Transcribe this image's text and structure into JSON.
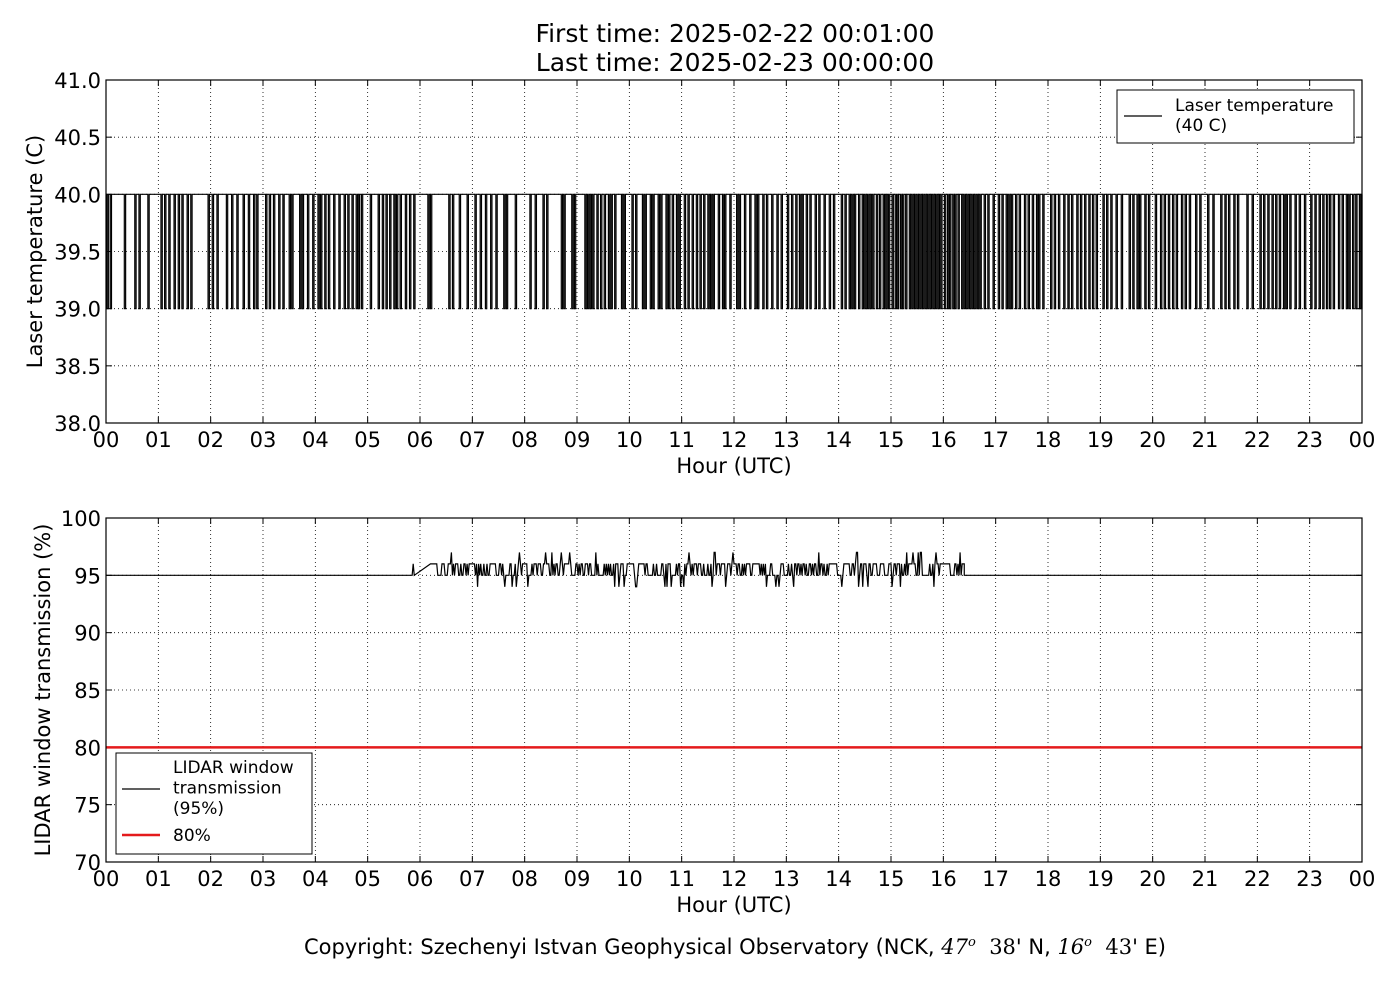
{
  "header": {
    "first_time": "First time: 2025-02-22 00:01:00",
    "last_time": "Last time: 2025-02-23 00:00:00"
  },
  "footer": {
    "prefix": "Copyright: Szechenyi Istvan Geophysical Observatory (NCK, ",
    "lat_deg": "47",
    "deg_sign": "o",
    "lat_min": "38",
    "lat_suffix": "' N, ",
    "lon_deg": "16",
    "lon_min": "43",
    "lon_suffix": "' E)"
  },
  "chart_data": [
    {
      "type": "line",
      "xlabel": "Hour (UTC)",
      "ylabel": "Laser temperature (C)",
      "x_ticks": [
        "00",
        "01",
        "02",
        "03",
        "04",
        "05",
        "06",
        "07",
        "08",
        "09",
        "10",
        "11",
        "12",
        "13",
        "14",
        "15",
        "16",
        "17",
        "18",
        "19",
        "20",
        "21",
        "22",
        "23",
        "00"
      ],
      "xlim": [
        0,
        24
      ],
      "ylim": [
        38.0,
        41.0
      ],
      "y_ticks": [
        "38.0",
        "38.5",
        "39.0",
        "39.5",
        "40.0",
        "40.5",
        "41.0"
      ],
      "grid": true,
      "legend_position": "top-right",
      "series": [
        {
          "name": "Laser temperature\n(40 C)",
          "color": "#000000",
          "style": "step",
          "levels": [
            39.0,
            40.0
          ],
          "baseline": 40.0,
          "dips_to_39_at_hours": [
            0.02,
            0.08,
            0.35,
            0.55,
            0.63,
            0.8,
            1.05,
            1.12,
            1.2,
            1.3,
            1.38,
            1.45,
            1.55,
            1.62,
            1.95,
            2.03,
            2.12,
            2.3,
            2.4,
            2.5,
            2.62,
            2.72,
            2.82,
            2.88,
            3.05,
            3.12,
            3.2,
            3.3,
            3.38,
            3.5,
            3.55,
            3.7,
            3.75,
            3.85,
            3.95,
            4.05,
            4.1,
            4.18,
            4.25,
            4.35,
            4.45,
            4.55,
            4.62,
            4.7,
            4.78,
            4.82,
            4.88,
            5.05,
            5.2,
            5.28,
            5.35,
            5.42,
            5.5,
            5.55,
            5.62,
            5.72,
            5.8,
            5.88,
            6.15,
            6.2,
            6.55,
            6.62,
            6.75,
            6.9,
            7.05,
            7.15,
            7.25,
            7.35,
            7.45,
            7.6,
            7.65,
            7.82,
            8.1,
            8.2,
            8.35,
            8.42,
            8.7,
            8.75,
            8.9,
            8.95,
            9.15,
            9.2,
            9.25,
            9.3,
            9.38,
            9.45,
            9.52,
            9.6,
            9.65,
            9.72,
            9.85,
            9.9,
            10.05,
            10.12,
            10.25,
            10.3,
            10.4,
            10.45,
            10.55,
            10.6,
            10.7,
            10.75,
            10.82,
            10.9,
            10.95,
            11.05,
            11.12,
            11.2,
            11.28,
            11.35,
            11.42,
            11.5,
            11.55,
            11.6,
            11.7,
            11.78,
            11.82,
            11.92,
            12.05,
            12.1,
            12.2,
            12.3,
            12.4,
            12.45,
            12.55,
            12.62,
            12.72,
            12.82,
            12.9,
            13.02,
            13.1,
            13.18,
            13.25,
            13.3,
            13.38,
            13.45,
            13.55,
            13.62,
            13.72,
            13.82,
            13.9,
            14.05,
            14.12,
            14.2,
            14.25,
            14.3,
            14.38,
            14.45,
            14.5,
            14.55,
            14.6,
            14.65,
            14.72,
            14.78,
            14.85,
            14.9,
            14.95,
            15.02,
            15.08,
            15.12,
            15.18,
            15.22,
            15.28,
            15.35,
            15.4,
            15.45,
            15.5,
            15.55,
            15.6,
            15.65,
            15.7,
            15.75,
            15.8,
            15.85,
            15.9,
            15.95,
            16.02,
            16.08,
            16.12,
            16.18,
            16.22,
            16.28,
            16.35,
            16.4,
            16.45,
            16.5,
            16.55,
            16.6,
            16.65,
            16.7,
            16.78,
            16.85,
            16.95,
            17.05,
            17.12,
            17.2,
            17.25,
            17.3,
            17.38,
            17.45,
            17.55,
            17.62,
            17.7,
            17.78,
            17.82,
            17.9,
            18.05,
            18.12,
            18.2,
            18.3,
            18.38,
            18.45,
            18.55,
            18.62,
            18.7,
            18.78,
            18.85,
            18.92,
            19.05,
            19.12,
            19.2,
            19.3,
            19.4,
            19.55,
            19.62,
            19.7,
            19.75,
            19.85,
            19.92,
            20.05,
            20.15,
            20.22,
            20.3,
            20.38,
            20.45,
            20.55,
            20.62,
            20.7,
            20.82,
            20.9,
            21.05,
            21.15,
            21.3,
            21.38,
            21.45,
            21.55,
            21.62,
            21.8,
            21.9,
            22.05,
            22.12,
            22.2,
            22.28,
            22.35,
            22.42,
            22.5,
            22.55,
            22.62,
            22.72,
            22.8,
            22.9,
            23.02,
            23.1,
            23.18,
            23.25,
            23.32,
            23.38,
            23.45,
            23.55,
            23.62,
            23.7,
            23.75,
            23.82,
            23.88,
            23.95,
            23.99
          ]
        }
      ]
    },
    {
      "type": "line",
      "xlabel": "Hour (UTC)",
      "ylabel": "LIDAR window transmission (%)",
      "x_ticks": [
        "00",
        "01",
        "02",
        "03",
        "04",
        "05",
        "06",
        "07",
        "08",
        "09",
        "10",
        "11",
        "12",
        "13",
        "14",
        "15",
        "16",
        "17",
        "18",
        "19",
        "20",
        "21",
        "22",
        "23",
        "00"
      ],
      "xlim": [
        0,
        24
      ],
      "ylim": [
        70,
        100
      ],
      "y_ticks": [
        "70",
        "75",
        "80",
        "85",
        "90",
        "95",
        "100"
      ],
      "grid": true,
      "legend_position": "bottom-left",
      "series": [
        {
          "name": "LIDAR window\ntransmission\n(95%)",
          "color": "#000000",
          "baseline": 95,
          "fluctuation_start_hour": 5.85,
          "fluctuation_end_hour": 16.4,
          "fluctuation_max": 97,
          "fluctuation_min": 94
        },
        {
          "name": "80%",
          "color": "#e41a1c",
          "constant": 80
        }
      ]
    }
  ]
}
